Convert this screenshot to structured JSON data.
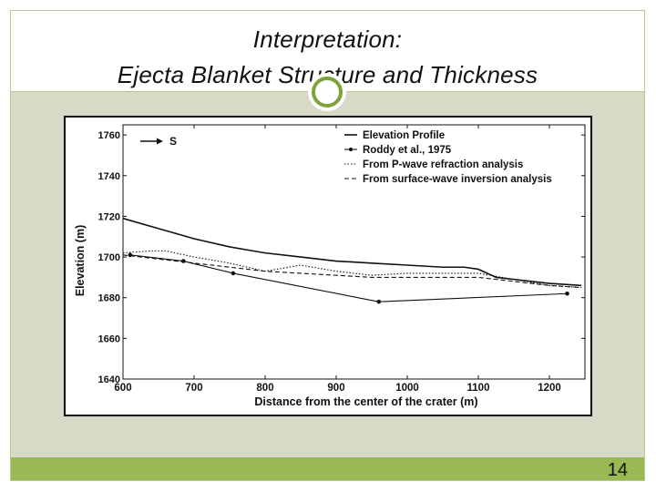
{
  "slide": {
    "title_line1": "Interpretation:",
    "title_line2": "Ejecta Blanket Structure and Thickness",
    "page_number": "14",
    "accent_color": "#98b954",
    "ring_color": "#7da33a",
    "content_bg_color": "#d8d9c7"
  },
  "chart_data": {
    "type": "line",
    "xlabel": "Distance from the center of the crater (m)",
    "ylabel": "Elevation (m)",
    "xlim": [
      600,
      1250
    ],
    "ylim": [
      1640,
      1765
    ],
    "x_ticks": [
      600,
      700,
      800,
      900,
      1000,
      1100,
      1200
    ],
    "y_ticks": [
      1640,
      1660,
      1680,
      1700,
      1720,
      1740,
      1760
    ],
    "grid": false,
    "legend_position": "top-right",
    "direction_label": "S",
    "series": [
      {
        "name": "Elevation Profile",
        "style": "solid",
        "color": "#111111",
        "x": [
          600,
          650,
          700,
          750,
          800,
          850,
          900,
          950,
          1000,
          1050,
          1080,
          1100,
          1125,
          1150,
          1200,
          1245
        ],
        "y": [
          1719,
          1714,
          1709,
          1705,
          1702,
          1700,
          1698,
          1697,
          1696,
          1695,
          1695,
          1694,
          1690,
          1689,
          1687,
          1686
        ]
      },
      {
        "name": "Roddy et al., 1975",
        "style": "solid-markers",
        "color": "#111111",
        "x": [
          610,
          685,
          755,
          960,
          1225
        ],
        "y": [
          1701,
          1698,
          1692,
          1678,
          1682
        ]
      },
      {
        "name": "From P-wave refraction analysis",
        "style": "dotted",
        "color": "#111111",
        "x": [
          600,
          640,
          660,
          700,
          750,
          800,
          850,
          900,
          950,
          1000,
          1050,
          1100,
          1150,
          1200,
          1245
        ],
        "y": [
          1702,
          1703,
          1703,
          1700,
          1697,
          1693,
          1696,
          1693,
          1691,
          1692,
          1692,
          1692,
          1689,
          1686,
          1685
        ]
      },
      {
        "name": "From surface-wave inversion analysis",
        "style": "dashed",
        "color": "#111111",
        "x": [
          600,
          650,
          700,
          750,
          800,
          850,
          900,
          950,
          1000,
          1050,
          1100,
          1150,
          1200,
          1245
        ],
        "y": [
          1701,
          1699,
          1697,
          1695,
          1693,
          1692,
          1691,
          1690,
          1690,
          1690,
          1690,
          1688,
          1686,
          1685
        ]
      }
    ]
  }
}
